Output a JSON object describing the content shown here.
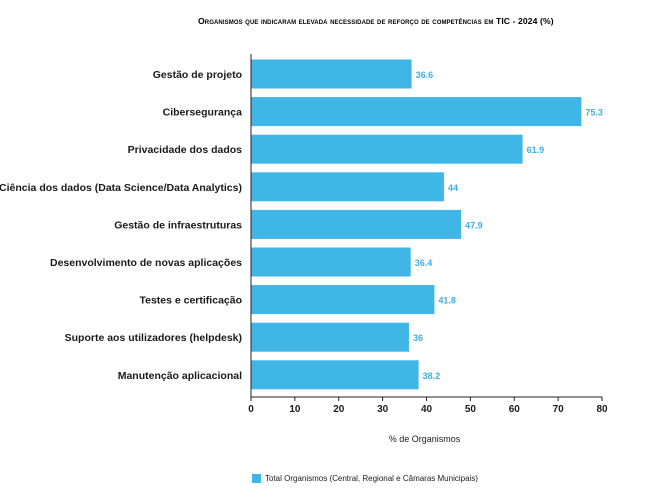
{
  "chart_data": {
    "type": "bar",
    "orientation": "horizontal",
    "title": "Organismos que indicaram elevada necessidade de reforço de competências em TIC - 2024 (%)",
    "xlabel": "% de Organismos",
    "ylabel": "",
    "xlim": [
      0,
      80
    ],
    "ticks": [
      0,
      10,
      20,
      30,
      40,
      50,
      60,
      70,
      80
    ],
    "grid": false,
    "legend_position": "bottom",
    "categories": [
      "Gestão de projeto",
      "Cibersegurança",
      "Privacidade dos dados",
      "Ciência dos dados (Data Science/Data Analytics)",
      "Gestão de infraestruturas",
      "Desenvolvimento de novas aplicações",
      "Testes e certificação",
      "Suporte aos utilizadores (helpdesk)",
      "Manutenção aplicacional"
    ],
    "series": [
      {
        "name": "Total Organismos (Central, Regional e Câmaras Municipais)",
        "values": [
          36.6,
          75.3,
          61.9,
          44,
          47.9,
          36.4,
          41.8,
          36,
          38.2
        ],
        "color": "#3fb6e6"
      }
    ]
  }
}
